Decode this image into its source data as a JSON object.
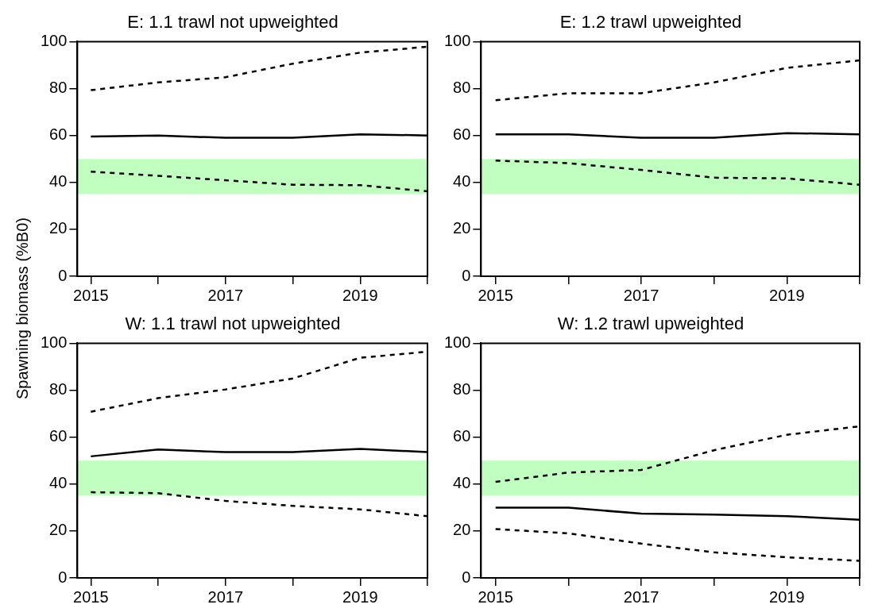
{
  "chart_data": [
    {
      "type": "line",
      "title": "E: 1.1 trawl not upweighted",
      "ylabel": "Spawning biomass (%B0)",
      "x": [
        2015,
        2016,
        2017,
        2018,
        2019,
        2020
      ],
      "xlim": [
        2014.8,
        2020
      ],
      "ylim": [
        0,
        100
      ],
      "xticks": [
        2015,
        {
          "value": 2016,
          "label": null
        },
        2017,
        {
          "value": 2018,
          "label": null
        },
        2019,
        {
          "value": 2020,
          "label": null
        }
      ],
      "yticks": [
        0,
        20,
        40,
        60,
        80,
        100
      ],
      "grid": false,
      "legend": false,
      "bands": [
        {
          "axis": "y",
          "from": 35,
          "to": 50,
          "color": "#c0ffc0"
        }
      ],
      "series": [
        {
          "color": "#000000",
          "line_style": "solid",
          "values": [
            59.5,
            60,
            59,
            59,
            60.5,
            60
          ]
        },
        {
          "color": "#000000",
          "line_style": "dashed",
          "values": [
            79.3,
            82.6,
            84.8,
            90.6,
            95.3,
            97.8
          ]
        },
        {
          "color": "#000000",
          "line_style": "dashed",
          "values": [
            44.6,
            42.8,
            40.9,
            39,
            38.8,
            36.2
          ]
        }
      ]
    },
    {
      "type": "line",
      "title": "E: 1.2 trawl upweighted",
      "x": [
        2015,
        2016,
        2017,
        2018,
        2019,
        2020
      ],
      "xlim": [
        2014.8,
        2020
      ],
      "ylim": [
        0,
        100
      ],
      "xticks": [
        2015,
        {
          "value": 2016,
          "label": null
        },
        2017,
        {
          "value": 2018,
          "label": null
        },
        2019,
        {
          "value": 2020,
          "label": null
        }
      ],
      "yticks": [
        0,
        20,
        40,
        60,
        80,
        100
      ],
      "grid": false,
      "legend": false,
      "bands": [
        {
          "axis": "y",
          "from": 35,
          "to": 50,
          "color": "#c0ffc0"
        }
      ],
      "series": [
        {
          "color": "#000000",
          "line_style": "solid",
          "values": [
            60.5,
            60.5,
            59,
            59,
            61,
            60.5
          ]
        },
        {
          "color": "#000000",
          "line_style": "dashed",
          "values": [
            75,
            78,
            78,
            82.6,
            88.8,
            92
          ]
        },
        {
          "color": "#000000",
          "line_style": "dashed",
          "values": [
            49.3,
            48.2,
            45.3,
            42,
            41.7,
            39
          ]
        }
      ]
    },
    {
      "type": "line",
      "title": "W: 1.1 trawl not upweighted",
      "x": [
        2015,
        2016,
        2017,
        2018,
        2019,
        2020
      ],
      "xlim": [
        2014.8,
        2020
      ],
      "ylim": [
        0,
        100
      ],
      "xticks": [
        2015,
        {
          "value": 2016,
          "label": null
        },
        2017,
        {
          "value": 2018,
          "label": null
        },
        2019,
        {
          "value": 2020,
          "label": null
        }
      ],
      "yticks": [
        0,
        20,
        40,
        60,
        80,
        100
      ],
      "grid": false,
      "legend": false,
      "bands": [
        {
          "axis": "y",
          "from": 35,
          "to": 50,
          "color": "#c0ffc0"
        }
      ],
      "series": [
        {
          "color": "#000000",
          "line_style": "solid",
          "values": [
            51.8,
            54.7,
            53.6,
            53.6,
            55,
            53.6
          ]
        },
        {
          "color": "#000000",
          "line_style": "dashed",
          "values": [
            70.8,
            76.6,
            80.3,
            85,
            93.8,
            96.4
          ]
        },
        {
          "color": "#000000",
          "line_style": "dashed",
          "values": [
            36.5,
            36.1,
            32.8,
            30.7,
            29.2,
            26.3
          ]
        }
      ]
    },
    {
      "type": "line",
      "title": "W: 1.2 trawl upweighted",
      "x": [
        2015,
        2016,
        2017,
        2018,
        2019,
        2020
      ],
      "xlim": [
        2014.8,
        2020
      ],
      "ylim": [
        0,
        100
      ],
      "xticks": [
        2015,
        {
          "value": 2016,
          "label": null
        },
        2017,
        {
          "value": 2018,
          "label": null
        },
        2019,
        {
          "value": 2020,
          "label": null
        }
      ],
      "yticks": [
        0,
        20,
        40,
        60,
        80,
        100
      ],
      "grid": false,
      "legend": false,
      "bands": [
        {
          "axis": "y",
          "from": 35,
          "to": 50,
          "color": "#c0ffc0"
        }
      ],
      "series": [
        {
          "color": "#000000",
          "line_style": "solid",
          "values": [
            29.9,
            29.9,
            27.4,
            27,
            26.3,
            24.8
          ]
        },
        {
          "color": "#000000",
          "line_style": "dashed",
          "values": [
            40.9,
            44.9,
            46,
            54.4,
            61,
            64.6
          ]
        },
        {
          "color": "#000000",
          "line_style": "dashed",
          "values": [
            20.8,
            19,
            14.6,
            10.9,
            8.8,
            7.3
          ]
        }
      ]
    }
  ]
}
